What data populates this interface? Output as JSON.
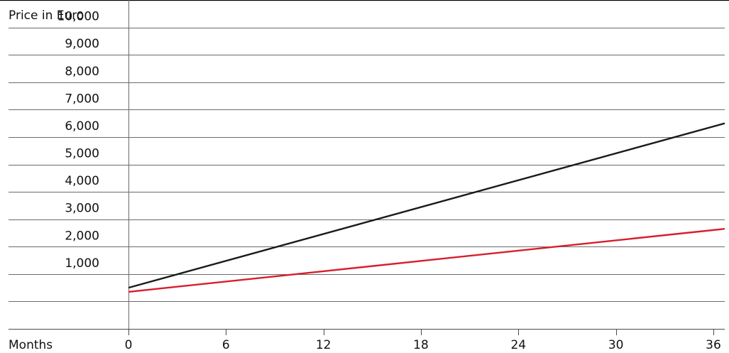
{
  "chart_data": {
    "type": "line",
    "ylabel": "Price in Euro",
    "xlabel": "Months",
    "xlim": [
      0,
      36.7
    ],
    "ylim": [
      -1000,
      11000
    ],
    "x_ticks": [
      0,
      6,
      12,
      18,
      24,
      30,
      36
    ],
    "x_tick_labels": [
      "0",
      "6",
      "12",
      "18",
      "24",
      "30",
      "36"
    ],
    "y_ticks": [
      1000,
      2000,
      3000,
      4000,
      5000,
      6000,
      7000,
      8000,
      9000,
      10000
    ],
    "y_tick_labels": [
      "1,000",
      "2,000",
      "3,000",
      "4,000",
      "5,000",
      "6,000",
      "7,000",
      "8,000",
      "9,000",
      "10,000"
    ],
    "grid": "horizontal",
    "series": [
      {
        "x": [
          0,
          36.7
        ],
        "y": [
          500,
          6500
        ],
        "color": "#1a1a1a"
      },
      {
        "x": [
          0,
          36.7
        ],
        "y": [
          350,
          2650
        ],
        "color": "#d61f2c"
      }
    ]
  }
}
